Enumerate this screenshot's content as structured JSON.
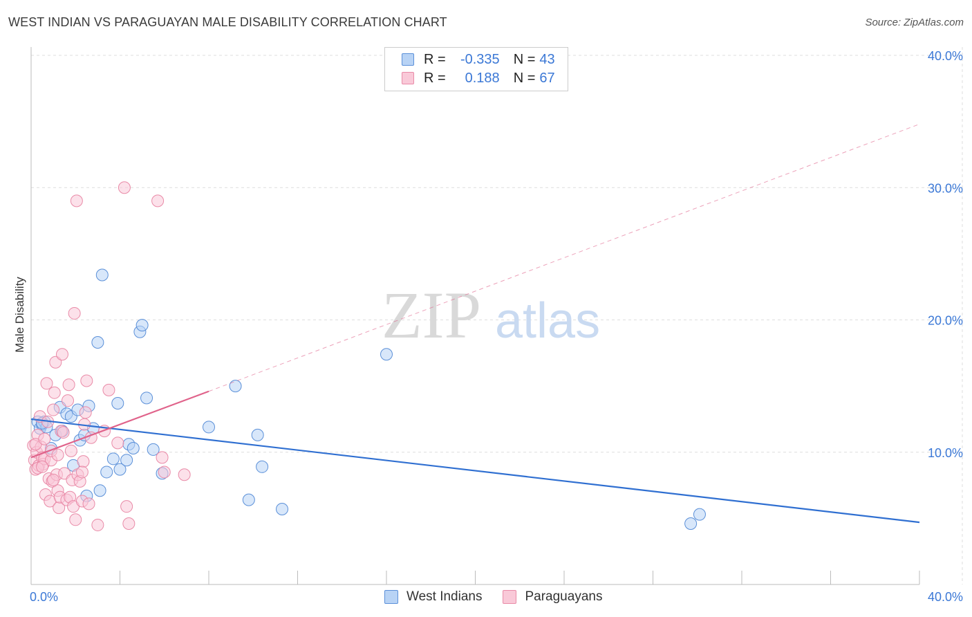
{
  "title": "WEST INDIAN VS PARAGUAYAN MALE DISABILITY CORRELATION CHART",
  "source": "Source: ZipAtlas.com",
  "watermark": {
    "zip": "ZIP",
    "atlas": "atlas"
  },
  "legend": {
    "rows": [
      {
        "r_label": "R =",
        "r_value": "-0.335",
        "n_label": "N =",
        "n_value": "43"
      },
      {
        "r_label": "R =",
        "r_value": "0.188",
        "n_label": "N =",
        "n_value": "67"
      }
    ]
  },
  "colors": {
    "blue": "#5a8fd8",
    "blue_fill": "#b8d3f5",
    "blue_line": "#2f6fd1",
    "pink": "#e98aa7",
    "pink_fill": "#f9c9d8",
    "pink_line": "#e0628a",
    "grid": "#dddddd",
    "tick_text": "#3b78d6"
  },
  "chart_data": {
    "type": "scatter",
    "title": "WEST INDIAN VS PARAGUAYAN MALE DISABILITY CORRELATION CHART",
    "xlabel": "",
    "ylabel": "Male Disability",
    "xlim": [
      0,
      40
    ],
    "ylim": [
      0,
      40
    ],
    "x_tick_labels": [
      "0.0%",
      "40.0%"
    ],
    "y_ticks": [
      10,
      20,
      30,
      40
    ],
    "y_tick_labels": [
      "10.0%",
      "20.0%",
      "30.0%",
      "40.0%"
    ],
    "grid": true,
    "series": [
      {
        "name": "West Indians",
        "color": "blue",
        "points": [
          [
            0.3,
            12.3
          ],
          [
            0.4,
            11.8
          ],
          [
            0.5,
            12.1
          ],
          [
            0.6,
            12.3
          ],
          [
            0.7,
            11.9
          ],
          [
            0.9,
            10.3
          ],
          [
            1.1,
            11.3
          ],
          [
            1.3,
            13.4
          ],
          [
            1.4,
            11.6
          ],
          [
            1.6,
            12.9
          ],
          [
            1.8,
            12.7
          ],
          [
            1.9,
            9.0
          ],
          [
            2.1,
            13.2
          ],
          [
            2.2,
            10.9
          ],
          [
            2.4,
            11.3
          ],
          [
            2.5,
            6.7
          ],
          [
            2.6,
            13.5
          ],
          [
            2.8,
            11.8
          ],
          [
            3.0,
            18.3
          ],
          [
            3.1,
            7.1
          ],
          [
            3.2,
            23.4
          ],
          [
            3.4,
            8.5
          ],
          [
            3.7,
            9.5
          ],
          [
            3.9,
            13.7
          ],
          [
            4.0,
            8.7
          ],
          [
            4.3,
            9.4
          ],
          [
            4.4,
            10.6
          ],
          [
            4.6,
            10.3
          ],
          [
            4.9,
            19.1
          ],
          [
            5.0,
            19.6
          ],
          [
            5.2,
            14.1
          ],
          [
            5.5,
            10.2
          ],
          [
            5.9,
            8.4
          ],
          [
            8.0,
            11.9
          ],
          [
            9.2,
            15.0
          ],
          [
            9.8,
            6.4
          ],
          [
            10.2,
            11.3
          ],
          [
            10.4,
            8.9
          ],
          [
            11.3,
            5.7
          ],
          [
            16.0,
            17.4
          ],
          [
            29.7,
            4.6
          ],
          [
            30.1,
            5.3
          ],
          [
            0.5,
            12.2
          ]
        ]
      },
      {
        "name": "Paraguayans",
        "color": "pink",
        "points": [
          [
            0.1,
            10.5
          ],
          [
            0.15,
            9.4
          ],
          [
            0.2,
            8.7
          ],
          [
            0.25,
            10.0
          ],
          [
            0.3,
            11.3
          ],
          [
            0.35,
            9.0
          ],
          [
            0.4,
            12.7
          ],
          [
            0.45,
            10.4
          ],
          [
            0.5,
            9.6
          ],
          [
            0.55,
            9.1
          ],
          [
            0.6,
            9.5
          ],
          [
            0.65,
            6.8
          ],
          [
            0.7,
            15.2
          ],
          [
            0.75,
            12.3
          ],
          [
            0.8,
            8.0
          ],
          [
            0.85,
            6.3
          ],
          [
            0.9,
            9.4
          ],
          [
            0.95,
            7.8
          ],
          [
            1.0,
            13.2
          ],
          [
            1.05,
            14.5
          ],
          [
            1.1,
            16.8
          ],
          [
            1.15,
            8.3
          ],
          [
            1.2,
            7.1
          ],
          [
            1.25,
            5.8
          ],
          [
            1.3,
            6.6
          ],
          [
            1.35,
            11.6
          ],
          [
            1.4,
            17.4
          ],
          [
            1.45,
            11.5
          ],
          [
            1.5,
            8.4
          ],
          [
            1.6,
            6.4
          ],
          [
            1.65,
            13.9
          ],
          [
            1.7,
            15.1
          ],
          [
            1.75,
            6.6
          ],
          [
            1.8,
            10.1
          ],
          [
            1.85,
            7.9
          ],
          [
            1.9,
            5.9
          ],
          [
            1.95,
            20.5
          ],
          [
            2.0,
            4.9
          ],
          [
            2.05,
            29.0
          ],
          [
            2.1,
            8.3
          ],
          [
            2.2,
            7.8
          ],
          [
            2.3,
            6.3
          ],
          [
            2.35,
            9.3
          ],
          [
            2.4,
            12.1
          ],
          [
            2.45,
            13.0
          ],
          [
            2.5,
            15.4
          ],
          [
            2.6,
            6.1
          ],
          [
            2.7,
            11.1
          ],
          [
            3.0,
            4.5
          ],
          [
            3.3,
            11.6
          ],
          [
            3.5,
            14.7
          ],
          [
            3.9,
            10.7
          ],
          [
            4.2,
            30.0
          ],
          [
            4.3,
            5.9
          ],
          [
            4.4,
            4.6
          ],
          [
            5.7,
            29.0
          ],
          [
            5.9,
            9.6
          ],
          [
            6.0,
            8.5
          ],
          [
            6.9,
            8.3
          ],
          [
            0.2,
            10.6
          ],
          [
            0.3,
            8.8
          ],
          [
            0.5,
            8.9
          ],
          [
            0.9,
            10.1
          ],
          [
            1.0,
            7.9
          ],
          [
            0.6,
            11.0
          ],
          [
            2.3,
            8.5
          ],
          [
            1.2,
            9.8
          ]
        ]
      }
    ],
    "trendlines": [
      {
        "series": "West Indians",
        "from": [
          0,
          12.5
        ],
        "to": [
          40,
          4.7
        ],
        "style": "solid"
      },
      {
        "series": "Paraguayans",
        "from": [
          0,
          9.6
        ],
        "to": [
          8.0,
          14.6
        ],
        "style": "solid"
      },
      {
        "series": "Paraguayans",
        "from": [
          8.0,
          14.6
        ],
        "to": [
          40,
          34.8
        ],
        "style": "dashed"
      }
    ]
  },
  "bottom_legend": {
    "items": [
      {
        "label": "West Indians",
        "color": "blue"
      },
      {
        "label": "Paraguayans",
        "color": "pink"
      }
    ]
  }
}
